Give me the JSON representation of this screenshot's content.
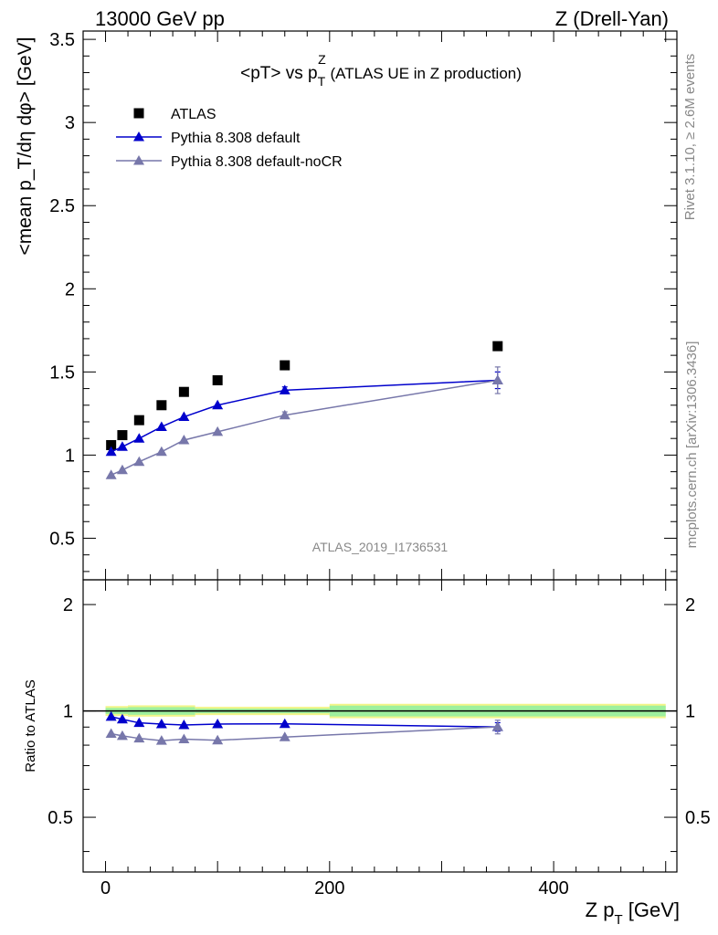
{
  "header": {
    "left": "13000 GeV pp",
    "right": "Z (Drell-Yan)"
  },
  "side": {
    "rivet": "Rivet 3.1.10, ≥ 2.6M events",
    "mcplots": "mcplots.cern.ch [arXiv:1306.3436]"
  },
  "watermark": "ATLAS_2019_I1736531",
  "chart_data": [
    {
      "type": "scatter",
      "title": {
        "main": "<pT> vs p",
        "sub": "T",
        "sup": "Z",
        "tail": " (ATLAS UE in Z production)"
      },
      "ylabel": "<mean p_T/dη dφ> [GeV]",
      "xlim": [
        -20,
        510
      ],
      "ylim": [
        0.25,
        3.55
      ],
      "yticks": [
        0.5,
        1,
        1.5,
        2,
        2.5,
        3,
        3.5
      ],
      "yticklabels": [
        "0.5",
        "1",
        "1.5",
        "2",
        "2.5",
        "3",
        "3.5"
      ],
      "log_y": false,
      "legend": {
        "position": "top-left",
        "entries": [
          "ATLAS",
          "Pythia 8.308 default",
          "Pythia 8.308 default-noCR"
        ]
      },
      "series": [
        {
          "name": "ATLAS",
          "style": "square-marker",
          "color": "#000000",
          "x": [
            5,
            15,
            30,
            50,
            70,
            100,
            160,
            350
          ],
          "y": [
            1.06,
            1.12,
            1.21,
            1.3,
            1.38,
            1.45,
            1.54,
            1.655
          ]
        },
        {
          "name": "Pythia 8.308 default",
          "style": "line-triangle",
          "color": "#0000cc",
          "x": [
            5,
            15,
            30,
            50,
            70,
            100,
            160,
            350
          ],
          "y": [
            1.02,
            1.05,
            1.1,
            1.17,
            1.23,
            1.3,
            1.39,
            1.45
          ],
          "err": [
            0,
            0,
            0,
            0,
            0,
            0,
            0.02,
            0.05
          ]
        },
        {
          "name": "Pythia 8.308 default-noCR",
          "style": "line-triangle",
          "color": "#7777aa",
          "x": [
            5,
            15,
            30,
            50,
            70,
            100,
            160,
            350
          ],
          "y": [
            0.88,
            0.91,
            0.96,
            1.02,
            1.09,
            1.14,
            1.24,
            1.45
          ],
          "err": [
            0,
            0,
            0,
            0,
            0,
            0,
            0.02,
            0.08
          ]
        }
      ]
    },
    {
      "type": "scatter",
      "ylabel": "Ratio to ATLAS",
      "xlabel": {
        "main": "Z p",
        "sub": "T",
        "tail": " [GeV]"
      },
      "xlim": [
        -20,
        510
      ],
      "ylim": [
        0.35,
        2.35
      ],
      "log_y": true,
      "xticks": [
        0,
        200,
        400
      ],
      "xticklabels": [
        "0",
        "200",
        "400"
      ],
      "yticks": [
        0.5,
        1,
        2
      ],
      "yticklabels": [
        "0.5",
        "1",
        "2"
      ],
      "bands": [
        {
          "x0": 0,
          "x1": 20,
          "lo": 0.98,
          "hi": 1.02
        },
        {
          "x0": 20,
          "x1": 80,
          "lo": 0.975,
          "hi": 1.025
        },
        {
          "x0": 80,
          "x1": 200,
          "lo": 0.985,
          "hi": 1.015
        },
        {
          "x0": 200,
          "x1": 500,
          "lo": 0.965,
          "hi": 1.035
        }
      ],
      "series": [
        {
          "name": "Pythia 8.308 default",
          "color": "#0000cc",
          "x": [
            5,
            15,
            30,
            50,
            70,
            100,
            160,
            350
          ],
          "y": [
            0.963,
            0.947,
            0.925,
            0.918,
            0.912,
            0.918,
            0.919,
            0.901
          ],
          "err": [
            0,
            0,
            0,
            0,
            0,
            0,
            0,
            0.025
          ]
        },
        {
          "name": "Pythia 8.308 default-noCR",
          "color": "#7777aa",
          "x": [
            5,
            15,
            30,
            50,
            70,
            100,
            160,
            350
          ],
          "y": [
            0.862,
            0.85,
            0.836,
            0.824,
            0.832,
            0.826,
            0.843,
            0.901
          ],
          "err": [
            0,
            0,
            0,
            0,
            0,
            0,
            0,
            0.04
          ]
        }
      ]
    }
  ]
}
